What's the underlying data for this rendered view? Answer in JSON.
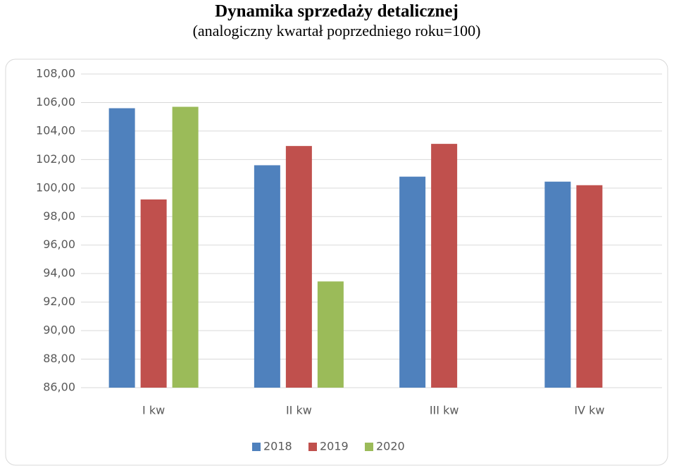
{
  "chart_data": {
    "type": "bar",
    "title": "Dynamika sprzedaży detalicznej",
    "subtitle": "(analogiczny kwartał poprzedniego roku=100)",
    "categories": [
      "I kw",
      "II kw",
      "III kw",
      "IV kw"
    ],
    "series": [
      {
        "name": "2018",
        "color": "#4f81bd",
        "values": [
          105.6,
          101.6,
          100.8,
          100.45
        ]
      },
      {
        "name": "2019",
        "color": "#c0504d",
        "values": [
          99.2,
          102.95,
          103.1,
          100.2
        ]
      },
      {
        "name": "2020",
        "color": "#9bbb59",
        "values": [
          105.7,
          93.45,
          null,
          null
        ]
      }
    ],
    "ylim": [
      86,
      108
    ],
    "yticks": [
      {
        "value": 86,
        "label": "86,00"
      },
      {
        "value": 88,
        "label": "88,00"
      },
      {
        "value": 90,
        "label": "90,00"
      },
      {
        "value": 92,
        "label": "92,00"
      },
      {
        "value": 94,
        "label": "94,00"
      },
      {
        "value": 96,
        "label": "96,00"
      },
      {
        "value": 98,
        "label": "98,00"
      },
      {
        "value": 100,
        "label": "100,00"
      },
      {
        "value": 102,
        "label": "102,00"
      },
      {
        "value": 104,
        "label": "104,00"
      },
      {
        "value": 106,
        "label": "106,00"
      },
      {
        "value": 108,
        "label": "108,00"
      }
    ],
    "grid": true,
    "legend": "bottom"
  }
}
